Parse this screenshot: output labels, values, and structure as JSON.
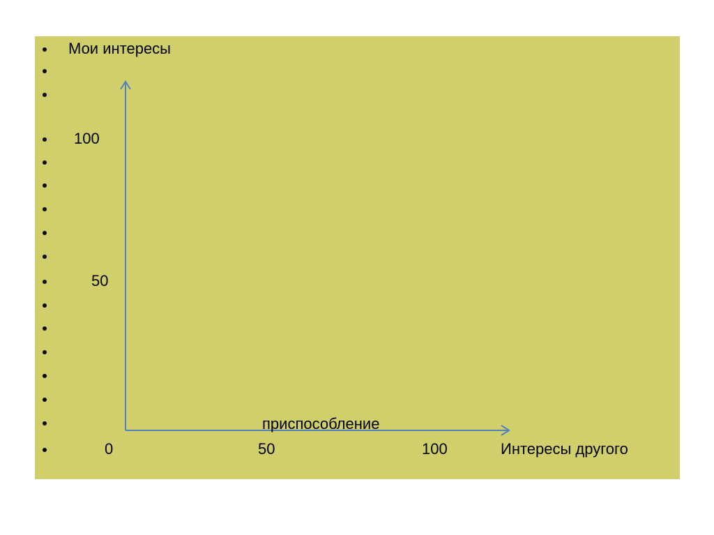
{
  "slide": {
    "y_axis_title": "Мои интересы",
    "y_labels": [
      100,
      50
    ],
    "region_label": "приспособление",
    "x_labels": [
      0,
      50,
      100
    ],
    "x_axis_title": "Интересы другого"
  }
}
